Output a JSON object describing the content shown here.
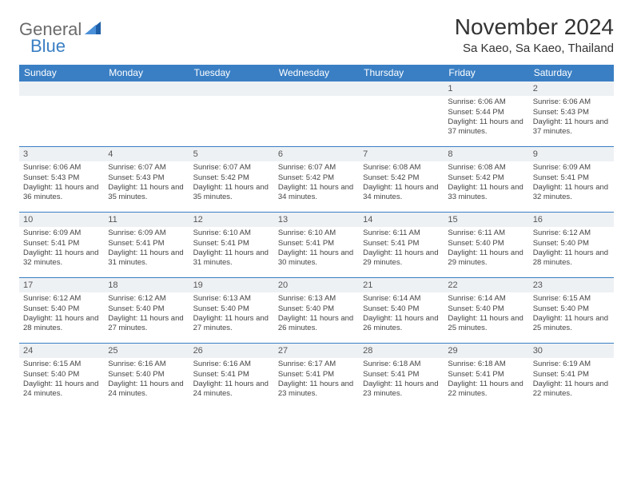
{
  "logo": {
    "part1": "General",
    "part2": "Blue"
  },
  "title": "November 2024",
  "location": "Sa Kaeo, Sa Kaeo, Thailand",
  "colors": {
    "header_bg": "#3a7fc4",
    "header_fg": "#ffffff",
    "row_separator": "#3a7fc4",
    "daynum_bg": "#eef1f4",
    "logo_gray": "#6b6b6b",
    "logo_blue": "#3a7fc4",
    "page_bg": "#ffffff",
    "text": "#444444"
  },
  "weekdays": [
    "Sunday",
    "Monday",
    "Tuesday",
    "Wednesday",
    "Thursday",
    "Friday",
    "Saturday"
  ],
  "weeks": [
    [
      null,
      null,
      null,
      null,
      null,
      {
        "d": "1",
        "sr": "6:06 AM",
        "ss": "5:44 PM",
        "dl": "11 hours and 37 minutes."
      },
      {
        "d": "2",
        "sr": "6:06 AM",
        "ss": "5:43 PM",
        "dl": "11 hours and 37 minutes."
      }
    ],
    [
      {
        "d": "3",
        "sr": "6:06 AM",
        "ss": "5:43 PM",
        "dl": "11 hours and 36 minutes."
      },
      {
        "d": "4",
        "sr": "6:07 AM",
        "ss": "5:43 PM",
        "dl": "11 hours and 35 minutes."
      },
      {
        "d": "5",
        "sr": "6:07 AM",
        "ss": "5:42 PM",
        "dl": "11 hours and 35 minutes."
      },
      {
        "d": "6",
        "sr": "6:07 AM",
        "ss": "5:42 PM",
        "dl": "11 hours and 34 minutes."
      },
      {
        "d": "7",
        "sr": "6:08 AM",
        "ss": "5:42 PM",
        "dl": "11 hours and 34 minutes."
      },
      {
        "d": "8",
        "sr": "6:08 AM",
        "ss": "5:42 PM",
        "dl": "11 hours and 33 minutes."
      },
      {
        "d": "9",
        "sr": "6:09 AM",
        "ss": "5:41 PM",
        "dl": "11 hours and 32 minutes."
      }
    ],
    [
      {
        "d": "10",
        "sr": "6:09 AM",
        "ss": "5:41 PM",
        "dl": "11 hours and 32 minutes."
      },
      {
        "d": "11",
        "sr": "6:09 AM",
        "ss": "5:41 PM",
        "dl": "11 hours and 31 minutes."
      },
      {
        "d": "12",
        "sr": "6:10 AM",
        "ss": "5:41 PM",
        "dl": "11 hours and 31 minutes."
      },
      {
        "d": "13",
        "sr": "6:10 AM",
        "ss": "5:41 PM",
        "dl": "11 hours and 30 minutes."
      },
      {
        "d": "14",
        "sr": "6:11 AM",
        "ss": "5:41 PM",
        "dl": "11 hours and 29 minutes."
      },
      {
        "d": "15",
        "sr": "6:11 AM",
        "ss": "5:40 PM",
        "dl": "11 hours and 29 minutes."
      },
      {
        "d": "16",
        "sr": "6:12 AM",
        "ss": "5:40 PM",
        "dl": "11 hours and 28 minutes."
      }
    ],
    [
      {
        "d": "17",
        "sr": "6:12 AM",
        "ss": "5:40 PM",
        "dl": "11 hours and 28 minutes."
      },
      {
        "d": "18",
        "sr": "6:12 AM",
        "ss": "5:40 PM",
        "dl": "11 hours and 27 minutes."
      },
      {
        "d": "19",
        "sr": "6:13 AM",
        "ss": "5:40 PM",
        "dl": "11 hours and 27 minutes."
      },
      {
        "d": "20",
        "sr": "6:13 AM",
        "ss": "5:40 PM",
        "dl": "11 hours and 26 minutes."
      },
      {
        "d": "21",
        "sr": "6:14 AM",
        "ss": "5:40 PM",
        "dl": "11 hours and 26 minutes."
      },
      {
        "d": "22",
        "sr": "6:14 AM",
        "ss": "5:40 PM",
        "dl": "11 hours and 25 minutes."
      },
      {
        "d": "23",
        "sr": "6:15 AM",
        "ss": "5:40 PM",
        "dl": "11 hours and 25 minutes."
      }
    ],
    [
      {
        "d": "24",
        "sr": "6:15 AM",
        "ss": "5:40 PM",
        "dl": "11 hours and 24 minutes."
      },
      {
        "d": "25",
        "sr": "6:16 AM",
        "ss": "5:40 PM",
        "dl": "11 hours and 24 minutes."
      },
      {
        "d": "26",
        "sr": "6:16 AM",
        "ss": "5:41 PM",
        "dl": "11 hours and 24 minutes."
      },
      {
        "d": "27",
        "sr": "6:17 AM",
        "ss": "5:41 PM",
        "dl": "11 hours and 23 minutes."
      },
      {
        "d": "28",
        "sr": "6:18 AM",
        "ss": "5:41 PM",
        "dl": "11 hours and 23 minutes."
      },
      {
        "d": "29",
        "sr": "6:18 AM",
        "ss": "5:41 PM",
        "dl": "11 hours and 22 minutes."
      },
      {
        "d": "30",
        "sr": "6:19 AM",
        "ss": "5:41 PM",
        "dl": "11 hours and 22 minutes."
      }
    ]
  ],
  "labels": {
    "sunrise": "Sunrise:",
    "sunset": "Sunset:",
    "daylight": "Daylight:"
  }
}
